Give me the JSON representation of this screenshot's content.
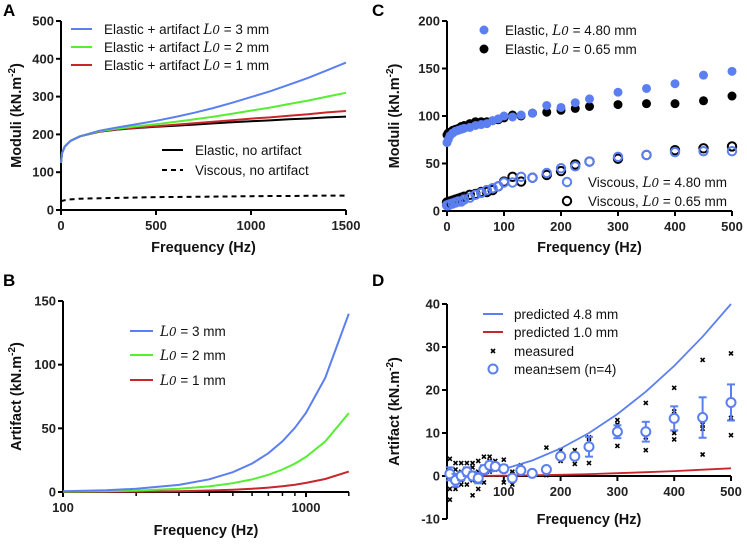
{
  "colors": {
    "blue": "#5b7ff0",
    "green": "#55ee33",
    "red": "#c8262b",
    "black": "#000000"
  },
  "chart_data": [
    {
      "panel": "A",
      "type": "line",
      "xlabel": "Frequency (Hz)",
      "ylabel": {
        "pre": "Moduli (kN.m",
        "sup": "-2",
        "post": ")"
      },
      "xlim": [
        0,
        1500
      ],
      "ylim": [
        0,
        500
      ],
      "xticks": [
        "0",
        "500",
        "1000",
        "1500"
      ],
      "xtick_values": [
        0,
        500,
        1000,
        1500
      ],
      "yticks": [
        "0",
        "100",
        "200",
        "300",
        "400",
        "500"
      ],
      "ytick_values": [
        0,
        100,
        200,
        300,
        400,
        500
      ],
      "x": [
        0,
        5,
        20,
        50,
        100,
        200,
        300,
        400,
        500,
        600,
        700,
        800,
        900,
        1000,
        1100,
        1200,
        1300,
        1400,
        1500
      ],
      "series": [
        {
          "name": {
            "pre": "Elastic + artifact ",
            "sym": "L",
            "sub": "0",
            "post": " = 3 mm"
          },
          "color": "blue",
          "values": [
            125,
            150,
            168,
            183,
            195,
            209.5,
            218.7,
            227.2,
            235.9,
            245.9,
            257.1,
            269.7,
            283.5,
            298.6,
            313.9,
            331.5,
            349.4,
            369.6,
            390
          ]
        },
        {
          "name": {
            "pre": "Elastic + artifact ",
            "sym": "L",
            "sub": "0",
            "post": " = 2 mm"
          },
          "color": "green",
          "values": [
            125,
            150,
            168,
            183,
            195,
            208.1,
            215.5,
            221.5,
            227,
            233.1,
            239.7,
            246.9,
            254.7,
            263,
            270.9,
            280.3,
            289.3,
            299.9,
            310
          ]
        },
        {
          "name": {
            "pre": "Elastic + artifact ",
            "sym": "L",
            "sub": "0",
            "post": " = 1 mm"
          },
          "color": "red",
          "values": [
            125,
            150,
            168,
            183,
            195,
            207.3,
            213.6,
            218.1,
            221.7,
            225.4,
            229.3,
            233.3,
            237.4,
            241.7,
            245.1,
            249.6,
            253.3,
            258.1,
            262
          ]
        },
        {
          "name": {
            "pre": "Elastic, no artifact"
          },
          "color": "black",
          "dash": false,
          "values": [
            125,
            150,
            168,
            183,
            195,
            207,
            213,
            217,
            220,
            223,
            226,
            229,
            232,
            235,
            237,
            240,
            242,
            245,
            247
          ]
        },
        {
          "name": {
            "pre": "Viscous, no artifact"
          },
          "color": "black",
          "dash": true,
          "values": [
            22,
            24,
            26,
            28,
            30,
            31,
            32,
            33,
            34,
            34.5,
            35,
            35.5,
            36,
            36.5,
            37,
            37,
            37.5,
            38,
            38
          ]
        }
      ]
    },
    {
      "panel": "B",
      "type": "line",
      "xscale": "log",
      "xlabel": "Frequency (Hz)",
      "ylabel": {
        "pre": "Artifact (kN.m",
        "sup": "-2",
        "post": ")"
      },
      "xlim": [
        100,
        1500
      ],
      "ylim": [
        0,
        150
      ],
      "xticks": [
        "100",
        "1000"
      ],
      "xtick_values": [
        100,
        1000
      ],
      "yticks": [
        "0",
        "50",
        "100",
        "150"
      ],
      "ytick_values": [
        0,
        50,
        100,
        150
      ],
      "x": [
        100,
        150,
        200,
        300,
        400,
        500,
        600,
        700,
        800,
        900,
        1000,
        1200,
        1500
      ],
      "series": [
        {
          "name": {
            "sym": "L",
            "sub": "0",
            "post": " = 3 mm"
          },
          "color": "blue",
          "values": [
            0.62,
            1.4,
            2.49,
            5.6,
            9.96,
            15.56,
            22.4,
            30.49,
            39.82,
            50.4,
            62.22,
            89.6,
            140
          ]
        },
        {
          "name": {
            "sym": "L",
            "sub": "0",
            "post": " = 2 mm"
          },
          "color": "green",
          "values": [
            0.28,
            0.62,
            1.1,
            2.48,
            4.41,
            6.89,
            9.92,
            13.5,
            17.64,
            22.32,
            27.56,
            39.68,
            62
          ]
        },
        {
          "name": {
            "sym": "L",
            "sub": "0",
            "post": " = 1 mm"
          },
          "color": "red",
          "values": [
            0.07,
            0.16,
            0.28,
            0.64,
            1.14,
            1.78,
            2.56,
            3.48,
            4.55,
            5.76,
            7.11,
            10.24,
            16
          ]
        }
      ]
    },
    {
      "panel": "C",
      "type": "scatter",
      "xlabel": "Frequency (Hz)",
      "ylabel": {
        "pre": "Moduli (kN.m",
        "sup": "-2",
        "post": ")"
      },
      "xlim": [
        0,
        500
      ],
      "ylim": [
        0,
        200
      ],
      "xticks": [
        "0",
        "100",
        "200",
        "300",
        "400",
        "500"
      ],
      "xtick_values": [
        0,
        100,
        200,
        300,
        400,
        500
      ],
      "yticks": [
        "0",
        "50",
        "100",
        "150",
        "200"
      ],
      "ytick_values": [
        0,
        50,
        100,
        150,
        200
      ],
      "x": [
        0,
        2,
        5,
        10,
        15,
        20,
        25,
        30,
        40,
        50,
        60,
        70,
        80,
        90,
        100,
        115,
        130,
        150,
        175,
        200,
        225,
        250,
        300,
        350,
        400,
        450,
        500
      ],
      "series": [
        {
          "name": {
            "pre": "Elastic, ",
            "sym": "L",
            "sub": "0",
            "post": " = 4.80 mm"
          },
          "color": "blue",
          "filled": true,
          "values": [
            72,
            75,
            79,
            82,
            84,
            85,
            86,
            87,
            88,
            90,
            91,
            92,
            95,
            97,
            100,
            99,
            101,
            103,
            111,
            109,
            114,
            118,
            125,
            129,
            134,
            143,
            147
          ]
        },
        {
          "name": {
            "pre": "Elastic, ",
            "sym": "L",
            "sub": "0",
            "post": " = 0.65 mm"
          },
          "color": "black",
          "filled": true,
          "values": [
            80,
            82,
            83,
            85,
            86,
            87,
            89,
            90,
            92,
            94,
            94,
            94,
            95,
            96,
            98,
            101,
            100,
            103,
            104,
            106,
            108,
            110,
            112,
            113,
            113,
            116,
            121
          ]
        },
        {
          "name": {
            "pre": "Viscous, ",
            "sym": "L",
            "sub": "0",
            "post": " = 4.80 mm"
          },
          "color": "blue",
          "filled": false,
          "values": [
            6,
            6,
            7,
            8,
            9,
            10,
            10,
            12,
            14,
            17,
            19,
            22,
            24,
            26,
            30,
            30,
            36,
            35,
            40,
            45,
            47,
            52,
            57,
            59,
            62,
            63,
            63
          ]
        },
        {
          "name": {
            "pre": "Viscous, ",
            "sym": "L",
            "sub": "0",
            "post": " = 0.65 mm"
          },
          "color": "black",
          "filled": false,
          "values": [
            9,
            9,
            10,
            11,
            12,
            13,
            14,
            15,
            17,
            18,
            20,
            20,
            22,
            26,
            31,
            36,
            31,
            35,
            38,
            42,
            49,
            52,
            55,
            59,
            64,
            66,
            68
          ]
        }
      ]
    },
    {
      "panel": "D",
      "type": "scatter",
      "xlabel": "Frequency (Hz)",
      "ylabel": {
        "pre": "Artifact (kN.m",
        "sup": "-2",
        "post": ")"
      },
      "xlim": [
        0,
        500
      ],
      "ylim": [
        -10,
        40
      ],
      "xticks": [
        "100",
        "200",
        "300",
        "400",
        "500"
      ],
      "xtick_values": [
        100,
        200,
        300,
        400,
        500
      ],
      "yticks": [
        "-10",
        "0",
        "10",
        "20",
        "30",
        "40"
      ],
      "ytick_values": [
        -10,
        0,
        10,
        20,
        30,
        40
      ],
      "lines": {
        "x": [
          0,
          25,
          50,
          75,
          100,
          150,
          200,
          250,
          300,
          350,
          400,
          450,
          500
        ],
        "series": [
          {
            "name": "predicted 4.8 mm",
            "color": "blue",
            "values": [
              0,
              0.1,
              0.4,
              0.9,
              1.6,
              3.6,
              6.4,
              10,
              14.4,
              19.6,
              25.6,
              32.4,
              40
            ]
          },
          {
            "name": "predicted 1.0 mm",
            "color": "red",
            "values": [
              0,
              0.005,
              0.018,
              0.04,
              0.07,
              0.16,
              0.29,
              0.45,
              0.65,
              0.88,
              1.15,
              1.46,
              1.8
            ]
          }
        ]
      },
      "measured": {
        "name": "measured",
        "points": [
          [
            5,
            -5.5
          ],
          [
            5,
            -3
          ],
          [
            5,
            0.5
          ],
          [
            5,
            4
          ],
          [
            15,
            -3
          ],
          [
            15,
            -1
          ],
          [
            15,
            1.5
          ],
          [
            15,
            3
          ],
          [
            25,
            -2
          ],
          [
            25,
            -1
          ],
          [
            25,
            1
          ],
          [
            25,
            3
          ],
          [
            35,
            -2
          ],
          [
            35,
            0
          ],
          [
            35,
            1.5
          ],
          [
            35,
            3
          ],
          [
            45,
            -4.5
          ],
          [
            45,
            -1
          ],
          [
            45,
            2
          ],
          [
            45,
            3
          ],
          [
            55,
            -3
          ],
          [
            55,
            -0.5
          ],
          [
            55,
            1
          ],
          [
            55,
            3.5
          ],
          [
            65,
            -1.5
          ],
          [
            65,
            1
          ],
          [
            65,
            2
          ],
          [
            65,
            4.5
          ],
          [
            75,
            1
          ],
          [
            75,
            2.5
          ],
          [
            75,
            3.5
          ],
          [
            75,
            4.5
          ],
          [
            85,
            1.5
          ],
          [
            85,
            2
          ],
          [
            85,
            2.5
          ],
          [
            85,
            3.5
          ],
          [
            100,
            -1.5
          ],
          [
            100,
            1
          ],
          [
            100,
            2
          ],
          [
            100,
            3.8
          ],
          [
            115,
            -2
          ],
          [
            115,
            -1
          ],
          [
            115,
            0.5
          ],
          [
            115,
            1
          ],
          [
            130,
            0.5
          ],
          [
            130,
            1
          ],
          [
            130,
            1.5
          ],
          [
            130,
            2.5
          ],
          [
            150,
            0
          ],
          [
            150,
            0.5
          ],
          [
            150,
            0.8
          ],
          [
            150,
            1
          ],
          [
            175,
            0.2
          ],
          [
            175,
            1
          ],
          [
            175,
            1.5
          ],
          [
            175,
            6.6
          ],
          [
            200,
            3.5
          ],
          [
            200,
            4.5
          ],
          [
            200,
            4.8
          ],
          [
            200,
            6
          ],
          [
            225,
            2.8
          ],
          [
            225,
            4.5
          ],
          [
            225,
            5
          ],
          [
            225,
            6
          ],
          [
            250,
            3
          ],
          [
            250,
            6.5
          ],
          [
            250,
            8
          ],
          [
            250,
            9
          ],
          [
            300,
            7
          ],
          [
            300,
            10
          ],
          [
            300,
            12
          ],
          [
            300,
            13
          ],
          [
            350,
            6
          ],
          [
            350,
            9
          ],
          [
            350,
            10
          ],
          [
            350,
            17
          ],
          [
            400,
            8.5
          ],
          [
            400,
            10
          ],
          [
            400,
            15
          ],
          [
            400,
            20.5
          ],
          [
            450,
            5
          ],
          [
            450,
            11
          ],
          [
            450,
            12
          ],
          [
            450,
            27
          ],
          [
            500,
            9.5
          ],
          [
            500,
            13.5
          ],
          [
            500,
            17
          ],
          [
            500,
            28.5
          ]
        ]
      },
      "mean_sem": {
        "name": "mean±sem (n=4)",
        "color": "blue",
        "points": [
          [
            5,
            0.5,
            1.5
          ],
          [
            15,
            -1,
            1.5
          ],
          [
            25,
            0,
            1
          ],
          [
            35,
            1,
            1
          ],
          [
            45,
            0,
            1
          ],
          [
            55,
            -0.5,
            1.2
          ],
          [
            65,
            1.5,
            1
          ],
          [
            75,
            2.5,
            0.8
          ],
          [
            85,
            2.2,
            0.8
          ],
          [
            100,
            1.7,
            0.8
          ],
          [
            115,
            -0.5,
            0.8
          ],
          [
            130,
            1.3,
            0.5
          ],
          [
            150,
            0.6,
            0.4
          ],
          [
            175,
            1.5,
            0.6
          ],
          [
            200,
            4.6,
            0.5
          ],
          [
            225,
            4.6,
            0.7
          ],
          [
            250,
            6.8,
            2.3
          ],
          [
            300,
            10.3,
            1.5
          ],
          [
            350,
            10.3,
            2.3
          ],
          [
            400,
            13.4,
            2.8
          ],
          [
            450,
            13.6,
            4.7
          ],
          [
            500,
            17.1,
            4.2
          ]
        ]
      }
    }
  ],
  "panel_letters": [
    "A",
    "B",
    "C",
    "D"
  ]
}
